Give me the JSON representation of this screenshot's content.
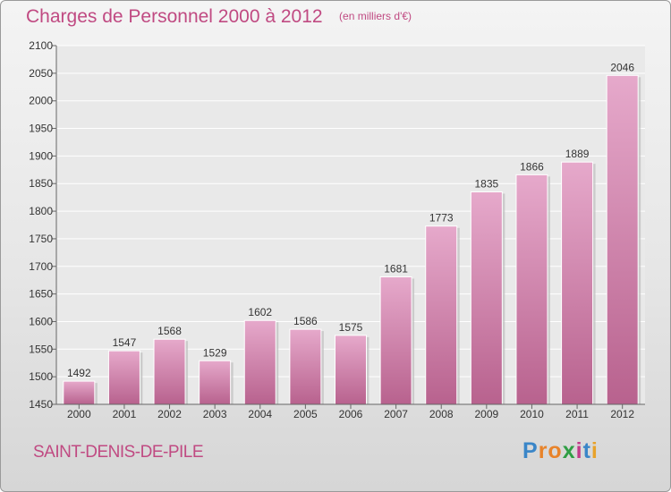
{
  "header": {
    "title": "Charges de Personnel 2000 à 2012",
    "subtitle": "(en milliers d'€)"
  },
  "footer": {
    "city": "SAINT-DENIS-DE-PILE",
    "brand_letters": [
      "P",
      "r",
      "o",
      "x",
      "i",
      "t",
      "i"
    ],
    "brand_colors": [
      "#3a86c8",
      "#e8832a",
      "#e8832a",
      "#2f9e44",
      "#c23a8a",
      "#3a86c8",
      "#e8a22a"
    ]
  },
  "colors": {
    "bar": "#d88fb8",
    "bar_top": "#e6a9cb",
    "bar_bottom": "#b8628e",
    "title": "#c04a82"
  },
  "chart_data": {
    "type": "bar",
    "title": "Charges de Personnel 2000 à 2012",
    "subtitle": "(en milliers d'€)",
    "categories": [
      "2000",
      "2001",
      "2002",
      "2003",
      "2004",
      "2005",
      "2006",
      "2007",
      "2008",
      "2009",
      "2010",
      "2011",
      "2012"
    ],
    "values": [
      1492,
      1547,
      1568,
      1529,
      1602,
      1586,
      1575,
      1681,
      1773,
      1835,
      1866,
      1889,
      2046
    ],
    "ylim": [
      1450,
      2100
    ],
    "yticks": [
      1450,
      1500,
      1550,
      1600,
      1650,
      1700,
      1750,
      1800,
      1850,
      1900,
      1950,
      2000,
      2050,
      2100
    ],
    "xlabel": "",
    "ylabel": "",
    "grid": true
  }
}
